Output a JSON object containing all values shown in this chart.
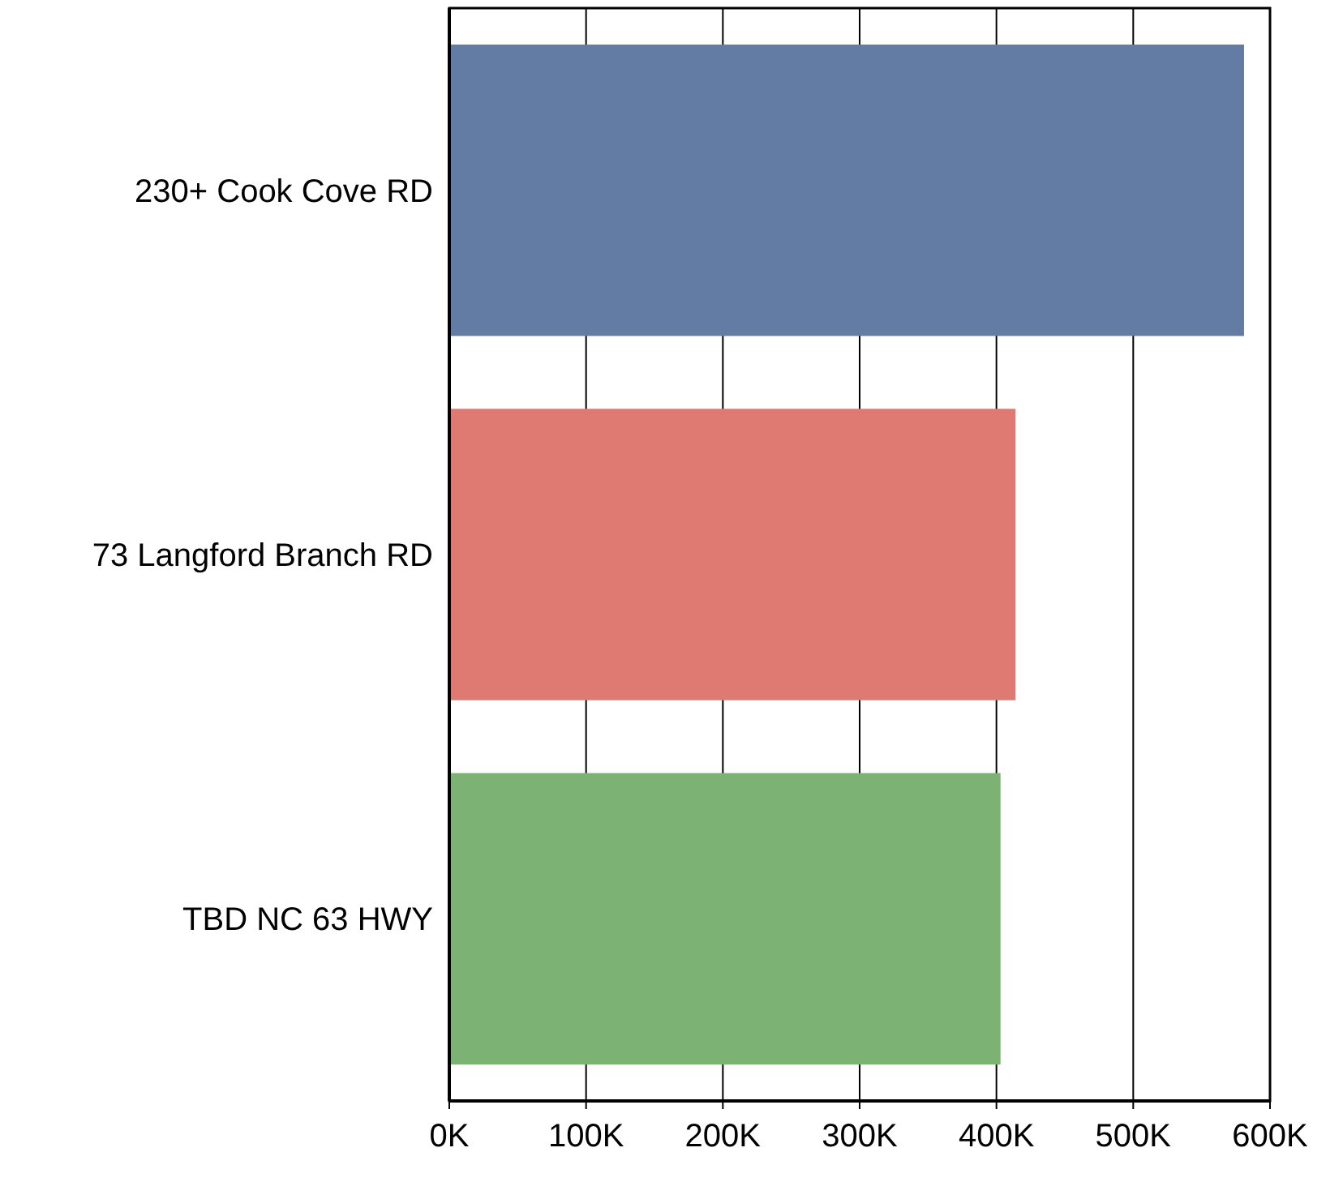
{
  "chart_data": {
    "type": "bar",
    "orientation": "horizontal",
    "categories": [
      "230+ Cook Cove RD",
      "73 Langford Branch RD",
      "TBD NC 63 HWY"
    ],
    "values": [
      581000,
      414000,
      403000
    ],
    "colors": [
      "#627ca3",
      "#df7a73",
      "#7cb274"
    ],
    "xlim": [
      0,
      600000
    ],
    "xticks": [
      {
        "value": 0,
        "label": "0K"
      },
      {
        "value": 100000,
        "label": "100K"
      },
      {
        "value": 200000,
        "label": "200K"
      },
      {
        "value": 300000,
        "label": "300K"
      },
      {
        "value": 400000,
        "label": "400K"
      },
      {
        "value": 500000,
        "label": "500K"
      },
      {
        "value": 600000,
        "label": "600K"
      }
    ],
    "grid": "x"
  }
}
